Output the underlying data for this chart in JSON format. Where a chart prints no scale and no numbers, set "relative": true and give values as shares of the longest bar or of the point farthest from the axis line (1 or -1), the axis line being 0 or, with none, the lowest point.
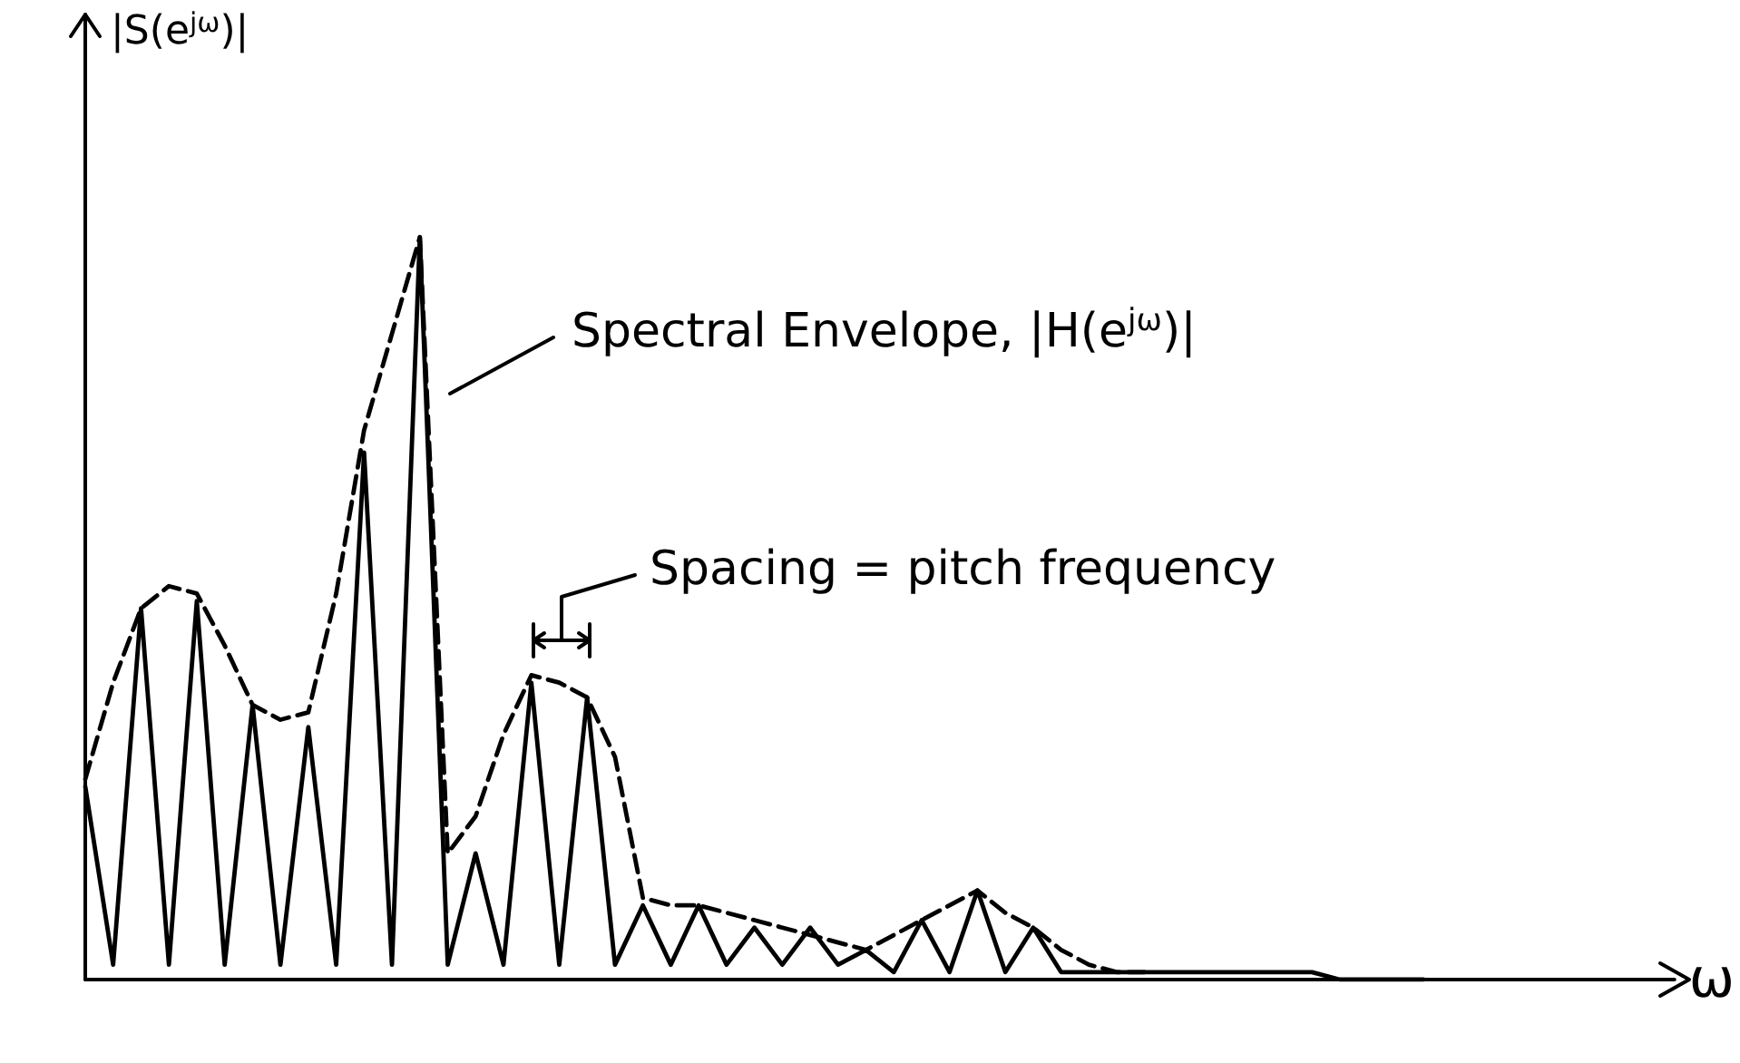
{
  "chart_data": {
    "type": "line",
    "relative": true,
    "xlabel": "ω",
    "ylabel": "|S(e$^{jω}$)|",
    "tick_labels": false,
    "grid": false,
    "marker": "none",
    "categories": [
      null,
      null,
      null,
      null,
      null,
      null,
      null,
      null,
      null,
      null,
      null,
      null,
      null,
      null,
      null,
      null,
      null,
      null,
      null,
      null,
      null,
      null,
      null,
      null,
      null,
      null,
      null,
      null,
      null,
      null,
      null,
      null,
      null,
      null,
      null,
      null,
      null,
      null,
      null,
      null,
      null,
      null,
      null,
      null,
      null,
      null,
      null,
      null,
      null,
      null,
      null,
      null,
      null,
      null,
      null,
      null,
      null,
      null
    ],
    "series": [
      {
        "color": "#000000",
        "line_style": "solid",
        "values": [
          0.26,
          0.02,
          0.5,
          0.02,
          0.51,
          0.02,
          0.37,
          0.02,
          0.34,
          0.02,
          0.71,
          0.02,
          1,
          0.02,
          0.17,
          0.02,
          0.4,
          0.02,
          0.38,
          0.02,
          0.1,
          0.02,
          0.1,
          0.02,
          0.07,
          0.02,
          0.07,
          0.02,
          0.04,
          0.01,
          0.08,
          0.01,
          0.12,
          0.01,
          0.07,
          0.01,
          0.01,
          0.01,
          0.01,
          0.01,
          0.01,
          0.01,
          0.01,
          0.01,
          0.01,
          0,
          0,
          0,
          0,
          null,
          null,
          null,
          null,
          null,
          null,
          null,
          null,
          null
        ]
      },
      {
        "color": "#000000",
        "line_style": "dashed",
        "values": [
          0.27,
          0.4,
          0.5,
          0.53,
          0.52,
          0.45,
          0.37,
          0.35,
          0.36,
          0.52,
          0.74,
          0.87,
          1,
          0.17,
          0.22,
          0.33,
          0.41,
          0.4,
          0.38,
          0.3,
          0.11,
          0.1,
          0.1,
          0.09,
          0.08,
          0.07,
          0.06,
          0.05,
          0.04,
          0.06,
          0.08,
          0.1,
          0.12,
          0.09,
          0.07,
          0.04,
          0.02,
          0.01,
          0.01,
          null,
          null,
          null,
          null,
          null,
          null,
          null,
          null,
          null,
          null,
          null,
          null,
          null,
          null,
          null,
          null,
          null,
          null,
          null
        ]
      }
    ],
    "annotations": [
      "Spectral Envelope, |H(e$^{jω}$)|",
      "Spacing = pitch frequency"
    ]
  }
}
